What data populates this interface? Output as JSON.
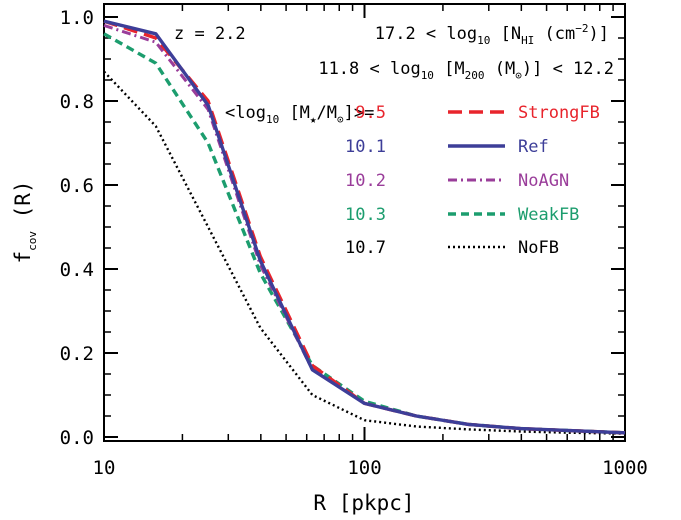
{
  "chart_data": {
    "type": "line",
    "xscale": "log",
    "xlim": [
      10,
      1000
    ],
    "ylim": [
      0.0,
      1.0
    ],
    "xlabel": "R [pkpc]",
    "ylabel": {
      "main": "f",
      "sub": "cov",
      "suffix": " (R)"
    },
    "xticks": [
      {
        "value": 10,
        "label": "10"
      },
      {
        "value": 100,
        "label": "100"
      },
      {
        "value": 1000,
        "label": "1000"
      }
    ],
    "yticks": [
      {
        "value": 0.0,
        "label": "0.0"
      },
      {
        "value": 0.2,
        "label": "0.2"
      },
      {
        "value": 0.4,
        "label": "0.4"
      },
      {
        "value": 0.6,
        "label": "0.6"
      },
      {
        "value": 0.8,
        "label": "0.8"
      },
      {
        "value": 1.0,
        "label": "1.0"
      }
    ],
    "annotations": {
      "redshift": "z = 2.2",
      "nhi": {
        "pre": "17.2 < log",
        "sub": "10",
        "mid": " [N",
        "sub2": "HI",
        "post": " (cm",
        "sup": "−2",
        "end": ")]"
      },
      "m200": {
        "pre": "11.8 < log",
        "sub": "10",
        "mid": " [M",
        "sub2": "200",
        "post": " (M",
        "sub3": "⊙",
        "end": ")] < 12.2"
      },
      "mstar_header": {
        "pre": "<log",
        "sub": "10",
        "mid": " [M",
        "sub2": "★",
        "post": "/M",
        "sub3": "⊙",
        "end": "]>="
      }
    },
    "series": [
      {
        "name": "StrongFB",
        "mstar": "9.5",
        "color": "#e8242c",
        "dash": "14,7",
        "width": 3.4,
        "points": [
          [
            10,
            0.99
          ],
          [
            15.8,
            0.95
          ],
          [
            25.1,
            0.8
          ],
          [
            39.8,
            0.43
          ],
          [
            63.1,
            0.17
          ],
          [
            100,
            0.08
          ],
          [
            158,
            0.05
          ],
          [
            251,
            0.03
          ],
          [
            398,
            0.02
          ],
          [
            631,
            0.015
          ],
          [
            1000,
            0.01
          ]
        ]
      },
      {
        "name": "Ref",
        "mstar": "10.1",
        "color": "#3d3e98",
        "dash": "",
        "width": 3.4,
        "points": [
          [
            10,
            0.99
          ],
          [
            15.8,
            0.96
          ],
          [
            25.1,
            0.79
          ],
          [
            39.8,
            0.42
          ],
          [
            63.1,
            0.16
          ],
          [
            100,
            0.08
          ],
          [
            158,
            0.05
          ],
          [
            251,
            0.03
          ],
          [
            398,
            0.02
          ],
          [
            631,
            0.015
          ],
          [
            1000,
            0.01
          ]
        ]
      },
      {
        "name": "NoAGN",
        "mstar": "10.2",
        "color": "#9a3d9a",
        "dash": "9,4,2,4",
        "width": 3,
        "points": [
          [
            10,
            0.98
          ],
          [
            15.8,
            0.94
          ],
          [
            25.1,
            0.78
          ],
          [
            39.8,
            0.41
          ],
          [
            63.1,
            0.16
          ],
          [
            100,
            0.08
          ],
          [
            158,
            0.05
          ],
          [
            251,
            0.03
          ],
          [
            398,
            0.02
          ],
          [
            631,
            0.015
          ],
          [
            1000,
            0.01
          ]
        ]
      },
      {
        "name": "WeakFB",
        "mstar": "10.3",
        "color": "#1c9d6e",
        "dash": "8,5",
        "width": 3.4,
        "points": [
          [
            10,
            0.96
          ],
          [
            15.8,
            0.89
          ],
          [
            25.1,
            0.7
          ],
          [
            39.8,
            0.39
          ],
          [
            63.1,
            0.17
          ],
          [
            100,
            0.085
          ],
          [
            158,
            0.05
          ],
          [
            251,
            0.03
          ],
          [
            398,
            0.02
          ],
          [
            631,
            0.015
          ],
          [
            1000,
            0.01
          ]
        ]
      },
      {
        "name": "NoFB",
        "mstar": "10.7",
        "color": "#000000",
        "dash": "2,3",
        "width": 2.4,
        "points": [
          [
            10,
            0.87
          ],
          [
            15.8,
            0.74
          ],
          [
            25.1,
            0.5
          ],
          [
            39.8,
            0.26
          ],
          [
            63.1,
            0.1
          ],
          [
            100,
            0.04
          ],
          [
            158,
            0.025
          ],
          [
            251,
            0.018
          ],
          [
            398,
            0.013
          ],
          [
            631,
            0.01
          ],
          [
            1000,
            0.008
          ]
        ]
      }
    ]
  }
}
